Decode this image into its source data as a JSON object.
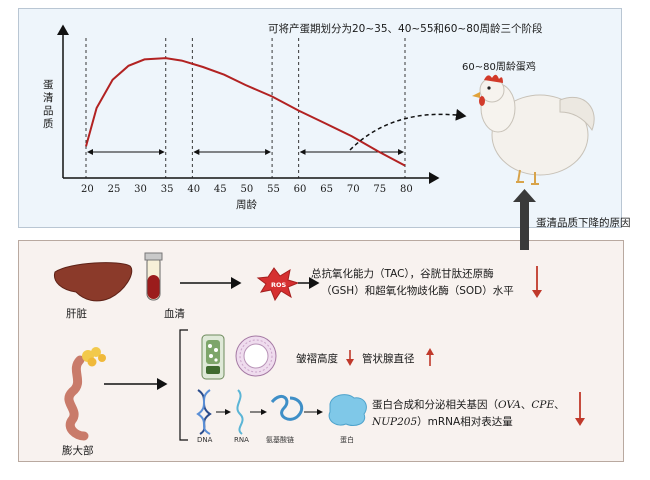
{
  "top_panel": {
    "annotation": "可将产蛋期划分为20~35、40~55和60~80周龄三个阶段",
    "ylabel": "蛋清品质",
    "xlabel": "周龄",
    "chicken_label": "60~80周龄蛋鸡"
  },
  "chart_data": {
    "type": "line",
    "xlabel": "周龄",
    "ylabel": "蛋清品质",
    "x_ticks": [
      "20",
      "25",
      "30",
      "35",
      "40",
      "45",
      "50",
      "55",
      "60",
      "65",
      "70",
      "75",
      "80"
    ],
    "x": [
      20,
      22,
      25,
      28,
      31,
      35,
      38,
      42,
      46,
      50,
      55,
      60,
      65,
      70,
      75,
      80
    ],
    "values": [
      0.2,
      0.5,
      0.72,
      0.83,
      0.88,
      0.89,
      0.87,
      0.82,
      0.76,
      0.68,
      0.59,
      0.48,
      0.38,
      0.28,
      0.16,
      0.05
    ],
    "phases": [
      [
        20,
        35
      ],
      [
        40,
        55
      ],
      [
        60,
        80
      ]
    ],
    "line_color": "#b22222",
    "grid": false
  },
  "arrow_label": "蛋清品质下降的原因",
  "bottom_panel": {
    "liver_label": "肝脏",
    "serum_label": "血清",
    "ros_label": "ROS",
    "antioxidant_line1": "总抗氧化能力（TAC），谷胱甘肽还原酶",
    "antioxidant_line2": "（GSH）和超氧化物歧化酶（SOD）水平",
    "magnum_label": "膨大部",
    "fold_height": "皱褶高度",
    "gland_diameter": "管状腺直径",
    "dna_label": "DNA",
    "rna_label": "RNA",
    "aa_label": "氨基酸链",
    "protein_label": "蛋白",
    "gene_line1_prefix": "蛋白合成和分泌相关基因（",
    "gene_ova": "OVA",
    "gene_sep": "、",
    "gene_cpe": "CPE",
    "gene_line1_suffix": "、",
    "gene_nup": "NUP205",
    "gene_line2_suffix": "）mRNA相对表达量",
    "down_color": "#c0392b",
    "up_color": "#c0392b"
  }
}
